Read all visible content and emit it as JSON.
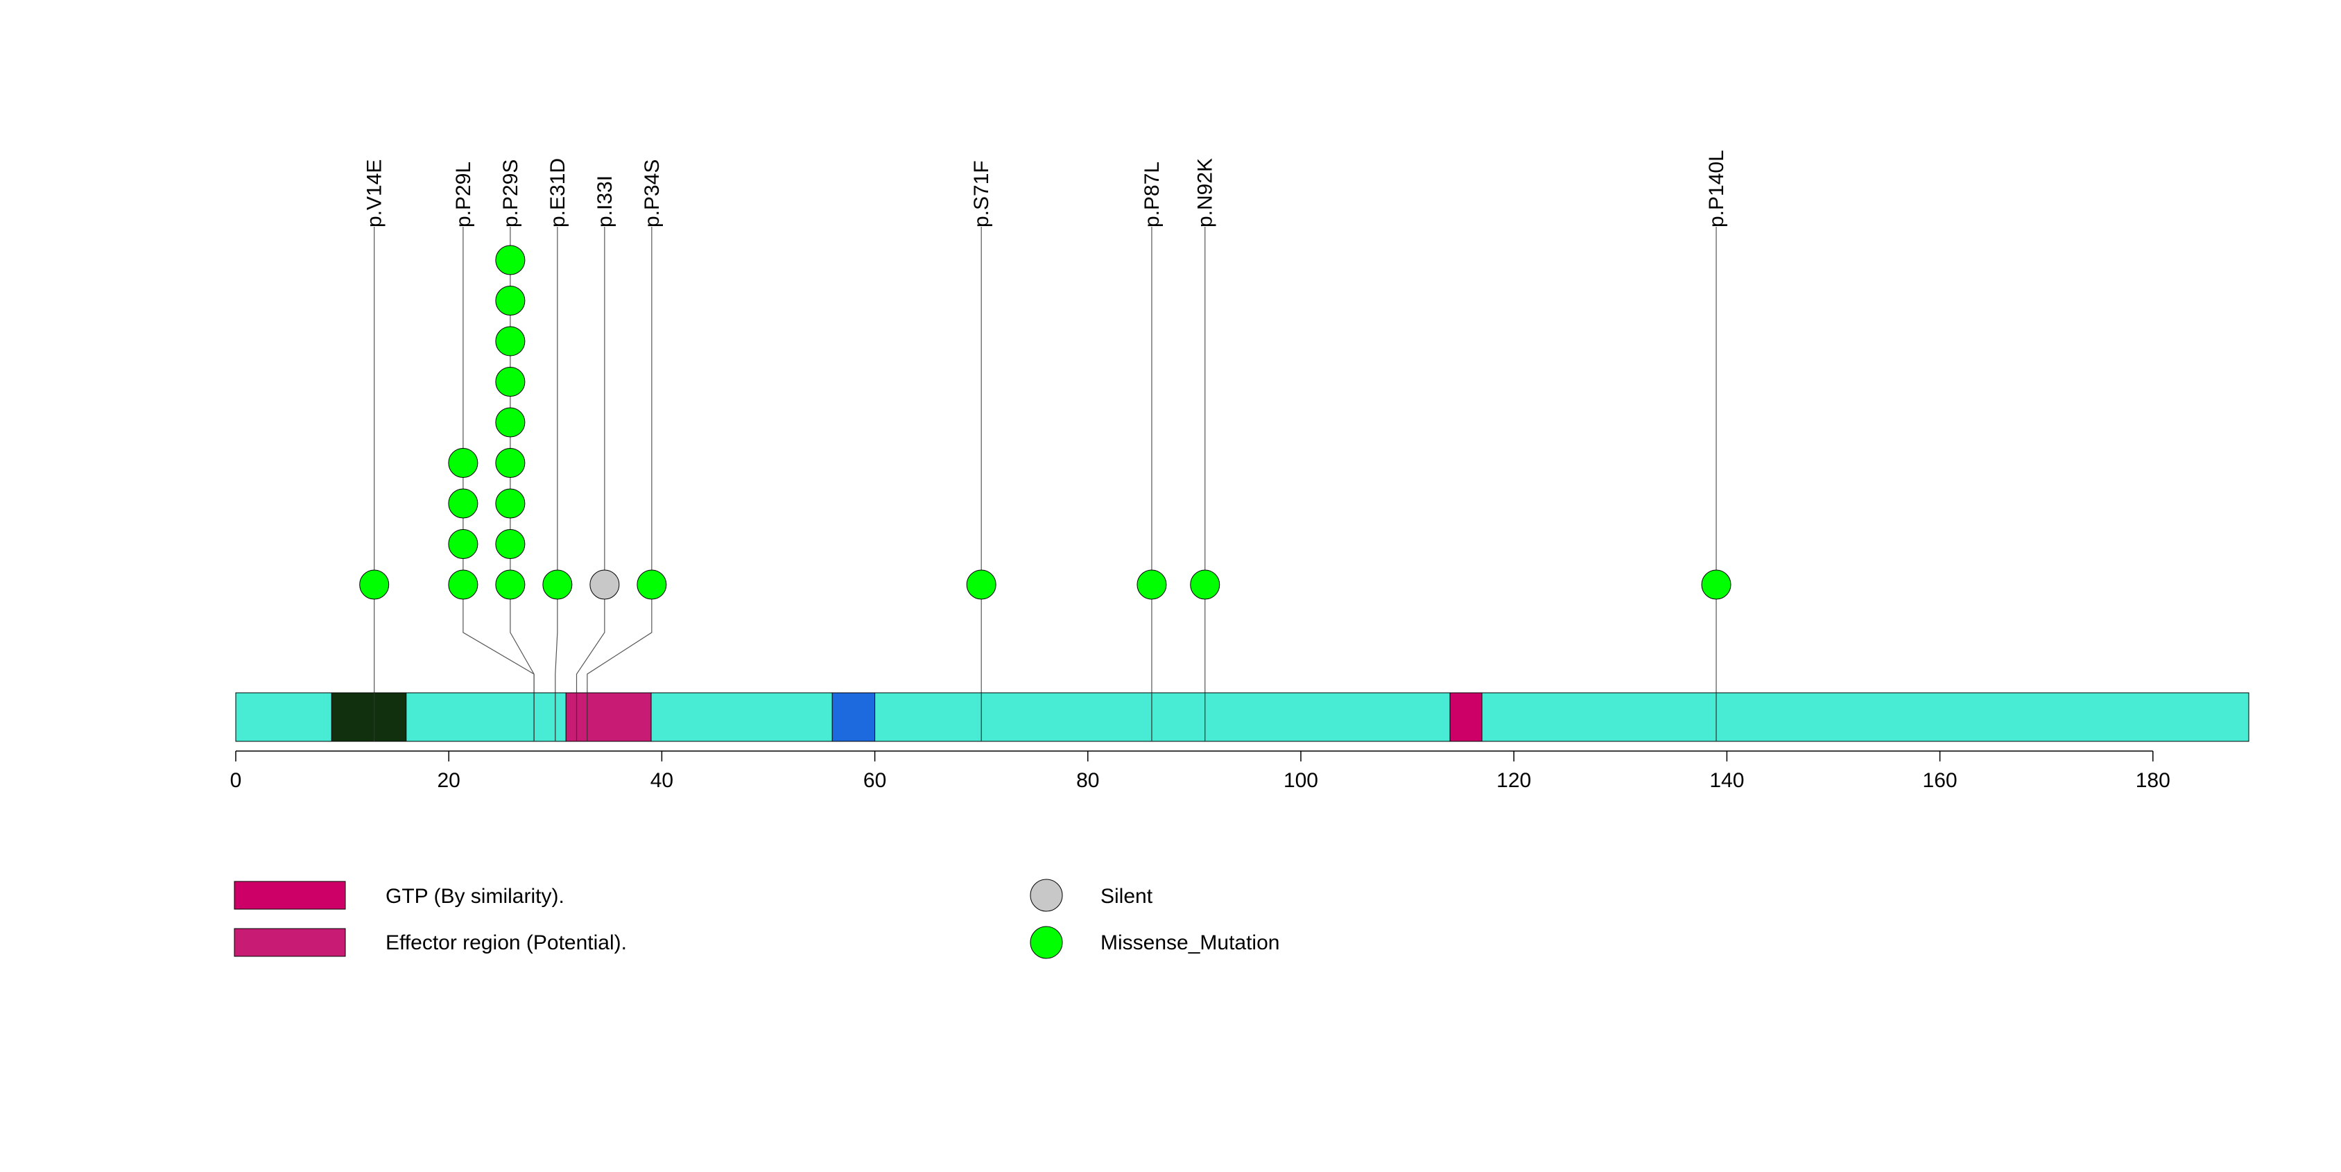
{
  "chart_data": {
    "type": "lollipop",
    "protein_length": 189,
    "x_ticks": [
      0,
      20,
      40,
      60,
      80,
      100,
      120,
      140,
      160,
      180
    ],
    "colors": {
      "backbone": "#48EBD3",
      "missense": "#00FF00",
      "silent": "#C8C8C8",
      "gtp": "#CC0066",
      "effector": "#C81C74",
      "dark_region": "#10300E",
      "blue_region": "#1D6ADE"
    },
    "domains": [
      {
        "start": 9,
        "end": 16,
        "color": "#10300E"
      },
      {
        "start": 31,
        "end": 39,
        "color": "#C81C74"
      },
      {
        "start": 56,
        "end": 60,
        "color": "#1D6ADE"
      },
      {
        "start": 114,
        "end": 117,
        "color": "#CC0066"
      }
    ],
    "mutations": [
      {
        "label": "p.V14E",
        "position": 13,
        "count": 1,
        "type": "Missense_Mutation"
      },
      {
        "label": "p.P29L",
        "position": 28,
        "count": 4,
        "type": "Missense_Mutation"
      },
      {
        "label": "p.P29S",
        "position": 28,
        "count": 9,
        "type": "Missense_Mutation"
      },
      {
        "label": "p.E31D",
        "position": 30,
        "count": 1,
        "type": "Missense_Mutation"
      },
      {
        "label": "p.I33I",
        "position": 32,
        "count": 1,
        "type": "Silent"
      },
      {
        "label": "p.P34S",
        "position": 33,
        "count": 1,
        "type": "Missense_Mutation"
      },
      {
        "label": "p.S71F",
        "position": 70,
        "count": 1,
        "type": "Missense_Mutation"
      },
      {
        "label": "p.P87L",
        "position": 86,
        "count": 1,
        "type": "Missense_Mutation"
      },
      {
        "label": "p.N92K",
        "position": 91,
        "count": 1,
        "type": "Missense_Mutation"
      },
      {
        "label": "p.P140L",
        "position": 139,
        "count": 1,
        "type": "Missense_Mutation"
      }
    ],
    "legend": {
      "domains": [
        {
          "label": "GTP (By similarity).",
          "color": "#CC0066"
        },
        {
          "label": "Effector region (Potential).",
          "color": "#C81C74"
        }
      ],
      "mutation_types": [
        {
          "label": "Silent",
          "color": "#C8C8C8"
        },
        {
          "label": "Missense_Mutation",
          "color": "#00FF00"
        }
      ]
    }
  }
}
